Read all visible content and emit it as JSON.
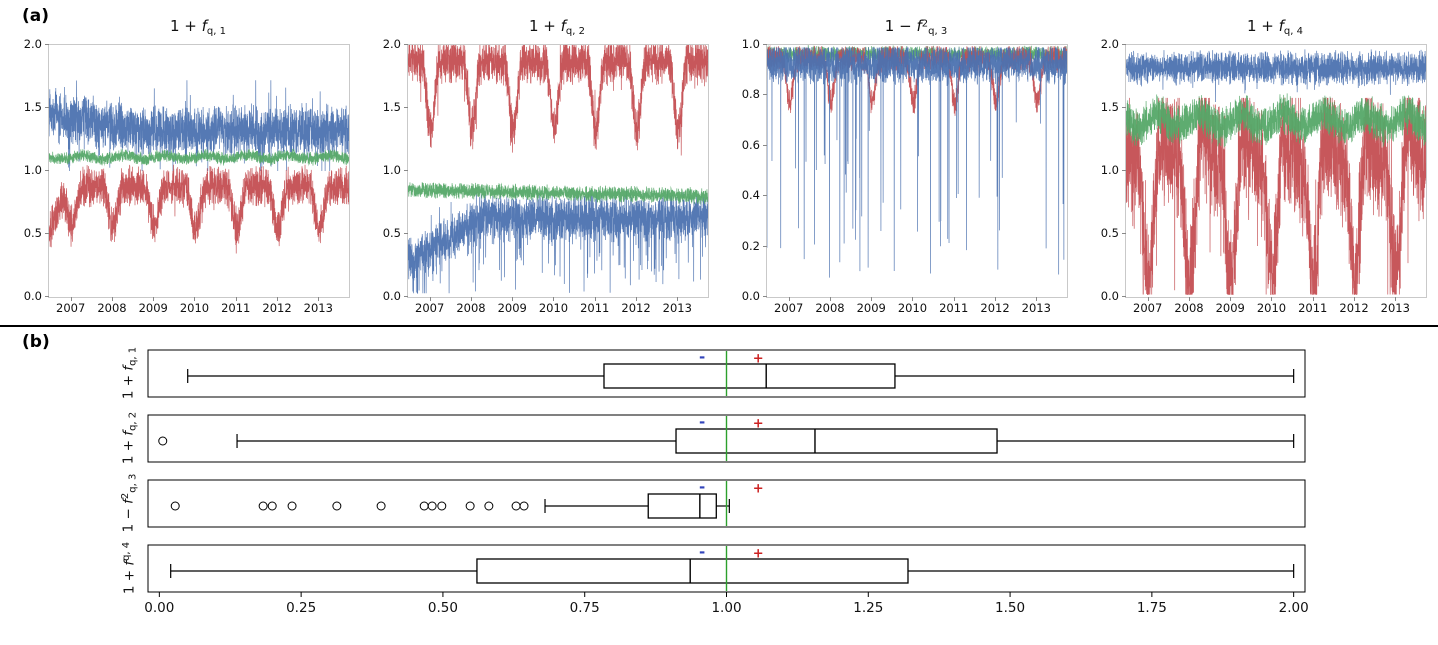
{
  "panel_a_label": "(a)",
  "panel_b_label": "(b)",
  "colors": {
    "blue": "#4c72b0",
    "green": "#55a868",
    "red": "#c44e52"
  },
  "chart_data": [
    {
      "type": "line",
      "title": {
        "pre": "1 + ",
        "var": "f",
        "sup": "",
        "sub": "q, 1"
      },
      "x_range": [
        2006.45,
        2013.72
      ],
      "xticks": [
        2007,
        2008,
        2009,
        2010,
        2011,
        2012,
        2013
      ],
      "ylim": [
        0.0,
        2.0
      ],
      "yticks": [
        0.0,
        0.5,
        1.0,
        1.5,
        2.0
      ],
      "series": [
        {
          "name": "series-blue",
          "color": "#4c72b0",
          "start": 1.46,
          "ramp_until": 2008.5,
          "base": 1.32,
          "noise": 0.11,
          "wild": 0.03,
          "spike_prob": 0.03,
          "spike_amp": 0.28,
          "clip": [
            1.0,
            1.72
          ]
        },
        {
          "name": "series-red",
          "color": "#c44e52",
          "start": 0.5,
          "ramp_until": 2006.9,
          "base": 0.88,
          "noise": 0.09,
          "dip_amp": 0.32,
          "dip_power": 2,
          "dip_phase": 0.25,
          "spike_prob": 0.02,
          "spike_amp": 0.15,
          "clip": [
            0.3,
            1.05
          ]
        },
        {
          "name": "series-green",
          "color": "#55a868",
          "base": 1.11,
          "noise": 0.028,
          "seas": 0.015,
          "clip": [
            1.0,
            1.2
          ]
        }
      ]
    },
    {
      "type": "line",
      "title": {
        "pre": "1 + ",
        "var": "f",
        "sup": "",
        "sub": "q, 2"
      },
      "x_range": [
        2006.45,
        2013.72
      ],
      "xticks": [
        2007,
        2008,
        2009,
        2010,
        2011,
        2012,
        2013
      ],
      "ylim": [
        0.0,
        2.0
      ],
      "yticks": [
        0.0,
        0.5,
        1.0,
        1.5,
        2.0
      ],
      "series": [
        {
          "name": "series-red",
          "color": "#c44e52",
          "base": 1.87,
          "noise": 0.1,
          "wild": 0.03,
          "dip_amp": 0.55,
          "dip_power": 3,
          "dip_phase": 0.25,
          "clip": [
            1.05,
            2.0
          ]
        },
        {
          "name": "series-blue",
          "color": "#4c72b0",
          "start": 0.28,
          "ramp_until": 2008.3,
          "base": 0.63,
          "noise": 0.1,
          "wild": 0.04,
          "spike_prob": 0.05,
          "spike_amp": 0.45,
          "clip": [
            0.03,
            0.85
          ]
        },
        {
          "name": "series-green",
          "color": "#55a868",
          "start": 0.85,
          "ramp_until": 2013.72,
          "base": 0.8,
          "noise": 0.035,
          "clip": [
            0.68,
            0.95
          ]
        }
      ]
    },
    {
      "type": "line",
      "title": {
        "pre": "1 − ",
        "var": "f",
        "sup": "2",
        "sub": "q, 3"
      },
      "x_range": [
        2006.45,
        2013.72
      ],
      "xticks": [
        2007,
        2008,
        2009,
        2010,
        2011,
        2012,
        2013
      ],
      "ylim": [
        0.0,
        1.0
      ],
      "yticks": [
        0.0,
        0.2,
        0.4,
        0.6,
        0.8,
        1.0
      ],
      "series": [
        {
          "name": "series-green",
          "color": "#55a868",
          "base": 0.963,
          "noise": 0.018,
          "clip": [
            0.88,
            0.998
          ]
        },
        {
          "name": "series-red",
          "color": "#c44e52",
          "base": 0.945,
          "noise": 0.03,
          "dip_amp": 0.17,
          "dip_power": 4,
          "dip_phase": 0.25,
          "clip": [
            0.6,
            0.995
          ]
        },
        {
          "name": "series-blue",
          "color": "#4c72b0",
          "base": 0.925,
          "noise": 0.045,
          "spike_prob": 0.02,
          "spike_amp": 0.85,
          "clip": [
            0.05,
            0.99
          ]
        }
      ]
    },
    {
      "type": "line",
      "title": {
        "pre": "1 + ",
        "var": "f",
        "sup": "",
        "sub": "q, 4"
      },
      "x_range": [
        2006.45,
        2013.72
      ],
      "xticks": [
        2007,
        2008,
        2009,
        2010,
        2011,
        2012,
        2013
      ],
      "ylim": [
        0.0,
        2.0
      ],
      "yticks": [
        0.0,
        0.5,
        1.0,
        1.5,
        2.0
      ],
      "series": [
        {
          "name": "series-red",
          "color": "#c44e52",
          "base": 1.15,
          "noise": 0.27,
          "wild": 0.04,
          "seas": 0.1,
          "dip_amp": 1.0,
          "dip_power": 1.6,
          "dip_phase": 0.25,
          "clip": [
            0.02,
            1.58
          ]
        },
        {
          "name": "series-green",
          "color": "#55a868",
          "base": 1.4,
          "noise": 0.09,
          "seas": 0.05,
          "clip": [
            1.05,
            1.62
          ]
        },
        {
          "name": "series-blue",
          "color": "#4c72b0",
          "base": 1.82,
          "noise": 0.075,
          "spike_prob": 0.02,
          "spike_amp": 0.15,
          "clip": [
            1.5,
            1.98
          ]
        }
      ]
    },
    {
      "type": "box",
      "xlim": [
        -0.02,
        2.02
      ],
      "xticks": [
        0.0,
        0.25,
        0.5,
        0.75,
        1.0,
        1.25,
        1.5,
        1.75,
        2.0
      ],
      "reference_line": {
        "x": 1.0,
        "color": "#2ca02c"
      },
      "markers": {
        "minus": {
          "x": 0.957,
          "label": "-",
          "color": "#3344bb"
        },
        "plus": {
          "x": 1.056,
          "label": "+",
          "color": "#cc2222"
        }
      },
      "rows": [
        {
          "label": {
            "pre": "1 + ",
            "var": "f",
            "sup": "",
            "sub": "q, 1"
          },
          "whisker_low": 0.05,
          "q1": 0.784,
          "median": 1.07,
          "q3": 1.297,
          "whisker_high": 2.0,
          "outliers": []
        },
        {
          "label": {
            "pre": "1 + ",
            "var": "f",
            "sup": "",
            "sub": "q, 2"
          },
          "whisker_low": 0.137,
          "q1": 0.911,
          "median": 1.156,
          "q3": 1.477,
          "whisker_high": 2.0,
          "outliers": [
            0.006
          ]
        },
        {
          "label": {
            "pre": "1 − ",
            "var": "f",
            "sup": "2",
            "sub": "q, 3"
          },
          "whisker_low": 0.68,
          "q1": 0.862,
          "median": 0.953,
          "q3": 0.982,
          "whisker_high": 1.005,
          "outliers": [
            0.028,
            0.183,
            0.199,
            0.234,
            0.313,
            0.391,
            0.467,
            0.481,
            0.498,
            0.548,
            0.581,
            0.629,
            0.643
          ]
        },
        {
          "label": {
            "pre": "1 + ",
            "var": "f",
            "sup": "",
            "sub": "q, 4"
          },
          "whisker_low": 0.02,
          "q1": 0.56,
          "median": 0.936,
          "q3": 1.32,
          "whisker_high": 2.0,
          "outliers": []
        }
      ]
    }
  ]
}
